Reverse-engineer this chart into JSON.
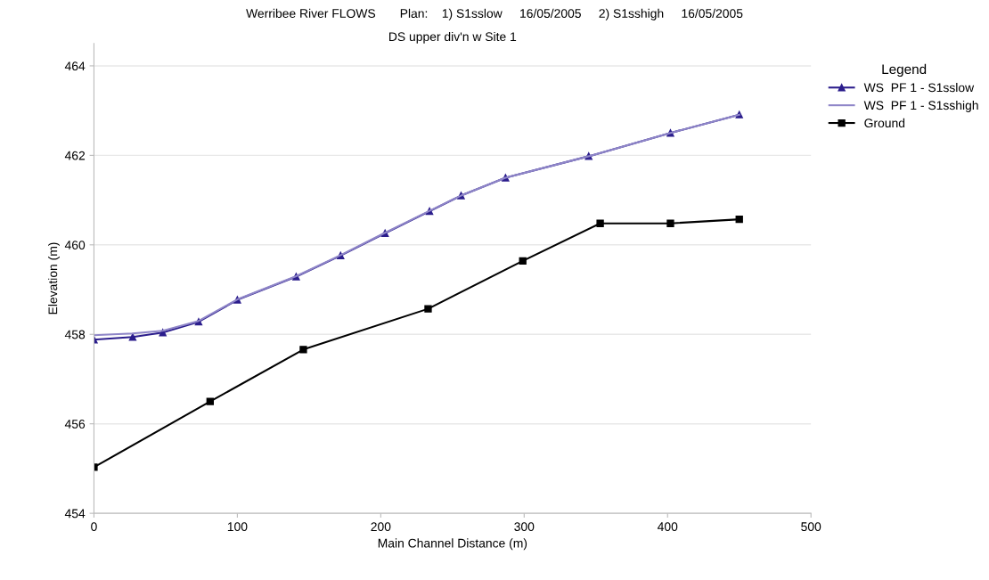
{
  "chart_data": {
    "type": "line",
    "title": "Werribee River FLOWS       Plan:    1) S1sslow     16/05/2005     2) S1sshigh     16/05/2005",
    "subtitle": "DS upper div'n w Site 1",
    "xlabel": "Main Channel Distance (m)",
    "ylabel": "Elevation (m)",
    "legend_title": "Legend",
    "legend": "right",
    "grid": "y",
    "xlim": [
      0,
      500
    ],
    "xticks": [
      0,
      100,
      200,
      300,
      400,
      500
    ],
    "ylim": [
      454,
      464.5
    ],
    "yticks": [
      454,
      456,
      458,
      460,
      462,
      464
    ],
    "series": [
      {
        "name": "WS  PF 1 - S1sslow",
        "color": "#2b1d8c",
        "marker": "triangle",
        "x": [
          0,
          27,
          48,
          73,
          100,
          141,
          172,
          203,
          234,
          256,
          287,
          345,
          402,
          450
        ],
        "values": [
          457.88,
          457.94,
          458.04,
          458.28,
          458.77,
          459.29,
          459.76,
          460.26,
          460.75,
          461.1,
          461.5,
          461.98,
          462.5,
          462.91
        ]
      },
      {
        "name": "WS  PF 1 - S1sshigh",
        "color": "#8f86c8",
        "marker": "none",
        "x": [
          0,
          27,
          48,
          73,
          100,
          141,
          172,
          203,
          234,
          256,
          287,
          345,
          402,
          450
        ],
        "values": [
          457.98,
          458.02,
          458.08,
          458.3,
          458.78,
          459.3,
          459.77,
          460.27,
          460.76,
          461.1,
          461.5,
          461.98,
          462.5,
          462.91
        ]
      },
      {
        "name": "Ground",
        "color": "#000000",
        "marker": "square",
        "x": [
          0,
          81,
          146,
          233,
          299,
          353,
          402,
          450
        ],
        "values": [
          455.03,
          456.5,
          457.66,
          458.57,
          459.64,
          460.48,
          460.48,
          460.57
        ]
      }
    ]
  }
}
